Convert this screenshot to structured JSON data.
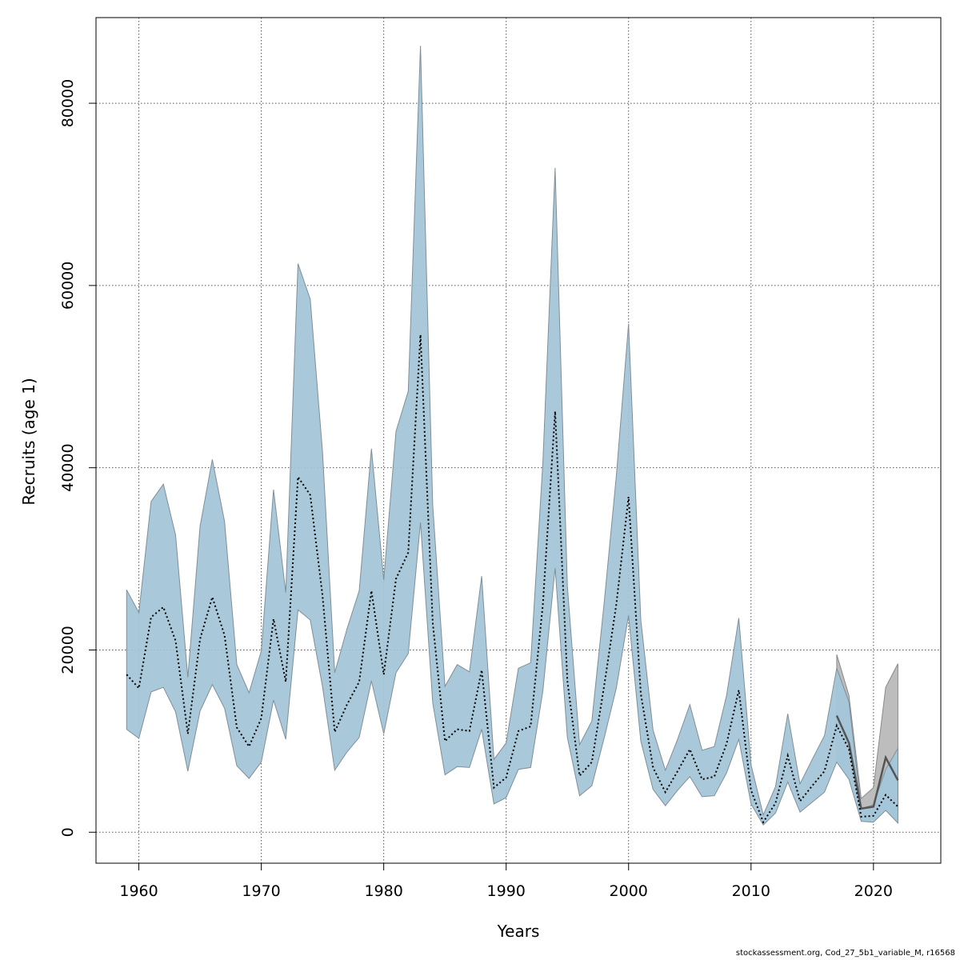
{
  "chart_data": {
    "type": "area",
    "xlabel": "Years",
    "ylabel": "Recruits (age 1)",
    "xlim": [
      1956.5,
      2025.5
    ],
    "ylim": [
      -3400,
      89400
    ],
    "x_ticks": [
      1960,
      1970,
      1980,
      1990,
      2000,
      2010,
      2020
    ],
    "y_ticks": [
      0,
      20000,
      40000,
      60000,
      80000
    ],
    "grid": true,
    "colors": {
      "band_main": "#a2c4d6",
      "band_recent": "#b3dff2",
      "band_alt": "#bdbdbd",
      "band_edge": "#7f8f99",
      "line_main": "#000000",
      "line_alt": "#555555"
    },
    "series": [
      {
        "x": [
          1959,
          1960,
          1961,
          1962,
          1963,
          1964,
          1965,
          1966,
          1967,
          1968,
          1969,
          1970,
          1971,
          1972,
          1973,
          1974,
          1975,
          1976,
          1977,
          1978,
          1979,
          1980,
          1981,
          1982,
          1983,
          1984,
          1985,
          1986,
          1987,
          1988,
          1989,
          1990,
          1991,
          1992,
          1993,
          1994,
          1995,
          1996,
          1997,
          1998,
          1999,
          2000,
          2001,
          2002,
          2003,
          2004,
          2005,
          2006,
          2007,
          2008,
          2009,
          2010,
          2011,
          2012,
          2013,
          2014,
          2015,
          2016,
          2017,
          2018,
          2019,
          2020,
          2021,
          2022
        ],
        "estimate": [
          17300,
          15800,
          23600,
          24700,
          21000,
          10800,
          21200,
          25800,
          21600,
          11500,
          9400,
          12500,
          23400,
          16500,
          39000,
          37000,
          26000,
          11000,
          14000,
          16500,
          26500,
          17300,
          27800,
          30700,
          54600,
          23000,
          10000,
          11300,
          11100,
          17800,
          4900,
          6000,
          11100,
          11600,
          25000,
          46200,
          16600,
          6200,
          7700,
          16000,
          25000,
          36800,
          15200,
          7100,
          4400,
          6700,
          9100,
          5800,
          6100,
          9700,
          15600,
          4600,
          1100,
          3200,
          8400,
          3400,
          5100,
          6700,
          11700,
          9100,
          1700,
          1800,
          4100,
          2800
        ],
        "lower": [
          11300,
          10300,
          15400,
          15900,
          13200,
          6700,
          13300,
          16200,
          13600,
          7300,
          5900,
          7700,
          14500,
          10200,
          24400,
          23300,
          16000,
          6800,
          8800,
          10400,
          16600,
          10800,
          17500,
          19600,
          34000,
          14200,
          6300,
          7200,
          7100,
          11300,
          3100,
          3800,
          6900,
          7100,
          15500,
          29000,
          10400,
          4000,
          5100,
          10300,
          15800,
          23800,
          10000,
          4700,
          2900,
          4600,
          6100,
          3900,
          4000,
          6500,
          10200,
          3100,
          800,
          2100,
          5500,
          2200,
          3300,
          4400,
          7700,
          5800,
          1200,
          1100,
          2400,
          1000
        ],
        "upper": [
          26600,
          24100,
          36300,
          38200,
          32600,
          17000,
          33600,
          40900,
          34100,
          18400,
          15300,
          19900,
          37600,
          26300,
          62400,
          58500,
          41800,
          17500,
          22300,
          26500,
          42100,
          27700,
          44000,
          48400,
          86300,
          35900,
          16000,
          18400,
          17600,
          28100,
          8000,
          9800,
          18000,
          18600,
          40600,
          72900,
          27000,
          9600,
          12200,
          25100,
          39100,
          55800,
          23300,
          11200,
          6800,
          10200,
          14000,
          9000,
          9400,
          15000,
          23500,
          7400,
          1900,
          5000,
          13000,
          5300,
          8000,
          10600,
          18000,
          14300,
          2600,
          3000,
          6900,
          9200
        ]
      },
      {
        "x": [
          2017,
          2018,
          2019,
          2020,
          2021,
          2022
        ],
        "estimate": [
          12800,
          9800,
          2600,
          2800,
          8200,
          5700
        ],
        "lower": [
          8400,
          6400,
          1800,
          1700,
          4000,
          2500
        ],
        "upper": [
          19500,
          15000,
          3700,
          4900,
          15900,
          18500
        ]
      }
    ]
  },
  "footer": "stockassessment.org, Cod_27_5b1_variable_M, r16568"
}
